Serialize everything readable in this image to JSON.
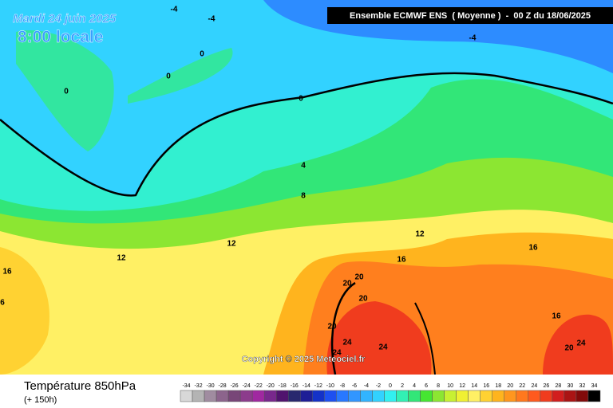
{
  "header": {
    "date": "Mardi 24 juin 2025",
    "time": "8:00 locale",
    "model": "Ensemble ECMWF ENS  ( Moyenne )  -  00 Z du 18/06/2025"
  },
  "map": {
    "copyright": "Copyright © 2025 Meteociel.fr",
    "contour_labels": [
      -4,
      -4,
      -4,
      0,
      0,
      0,
      0,
      4,
      8,
      12,
      12,
      12,
      16,
      16,
      16,
      16,
      6,
      20,
      20,
      20,
      20,
      20,
      24,
      24,
      24,
      24
    ]
  },
  "footer": {
    "title": "Température 850hPa",
    "subtitle": "(+ 150h)"
  },
  "legend": {
    "steps": [
      -34,
      -32,
      -30,
      -28,
      -26,
      -24,
      -22,
      -20,
      -18,
      -16,
      -14,
      -12,
      -10,
      -8,
      -6,
      -4,
      -2,
      0,
      2,
      4,
      6,
      8,
      10,
      12,
      14,
      16,
      18,
      20,
      22,
      24,
      26,
      28,
      30,
      32,
      34
    ],
    "colors": [
      "#d8d8d8",
      "#b4b4b4",
      "#a08ca0",
      "#8c648c",
      "#784678",
      "#8c3c8c",
      "#a028a0",
      "#78288c",
      "#50146e",
      "#28286e",
      "#1e1e96",
      "#1432c8",
      "#1e50f0",
      "#2878ff",
      "#3296ff",
      "#32b4ff",
      "#32d2ff",
      "#32f0f0",
      "#32f0b4",
      "#32e678",
      "#46e632",
      "#8ce632",
      "#c8f032",
      "#f0f032",
      "#fff064",
      "#ffd232",
      "#ffb41e",
      "#ff961e",
      "#ff781e",
      "#ff5a1e",
      "#f03c1e",
      "#d21e1e",
      "#aa1414",
      "#820a0a",
      "#000000"
    ]
  }
}
